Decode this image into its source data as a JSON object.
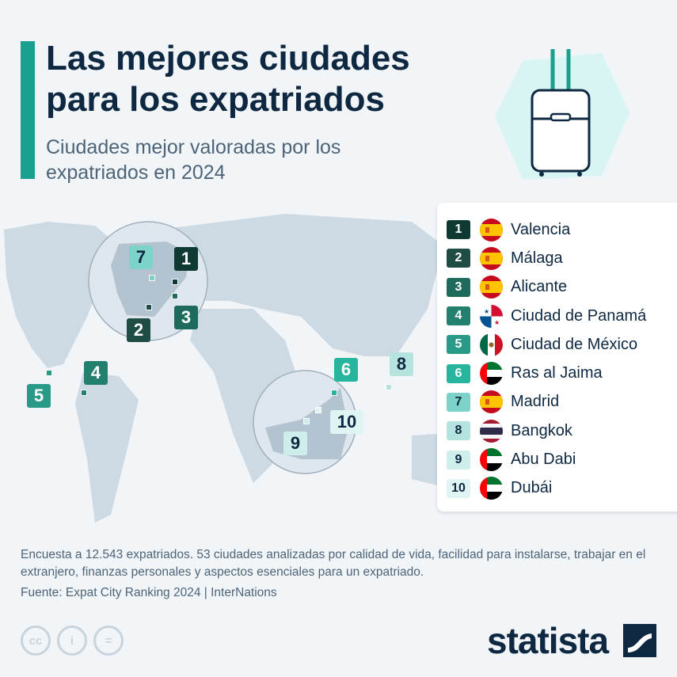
{
  "header": {
    "title": "Las mejores ciudades para los expatriados",
    "subtitle": "Ciudades mejor valoradas por los expatriados en 2024",
    "illustration": "suitcase-icon"
  },
  "ranking": [
    {
      "rank": "1",
      "city": "Valencia",
      "flag": "spain",
      "color": "#0f3a33",
      "text_color": "#ffffff"
    },
    {
      "rank": "2",
      "city": "Málaga",
      "flag": "spain",
      "color": "#1f4d45",
      "text_color": "#ffffff"
    },
    {
      "rank": "3",
      "city": "Alicante",
      "flag": "spain",
      "color": "#1e6b5c",
      "text_color": "#ffffff"
    },
    {
      "rank": "4",
      "city": "Ciudad de Panamá",
      "flag": "panama",
      "color": "#23806f",
      "text_color": "#ffffff"
    },
    {
      "rank": "5",
      "city": "Ciudad de México",
      "flag": "mexico",
      "color": "#2a9a88",
      "text_color": "#ffffff"
    },
    {
      "rank": "6",
      "city": "Ras al Jaima",
      "flag": "uae",
      "color": "#27b5a0",
      "text_color": "#ffffff"
    },
    {
      "rank": "7",
      "city": "Madrid",
      "flag": "spain",
      "color": "#7dd3c8",
      "text_color": "#0e2841"
    },
    {
      "rank": "8",
      "city": "Bangkok",
      "flag": "thailand",
      "color": "#b5e3dd",
      "text_color": "#0e2841"
    },
    {
      "rank": "9",
      "city": "Abu Dabi",
      "flag": "uae",
      "color": "#cdeeea",
      "text_color": "#0e2841"
    },
    {
      "rank": "10",
      "city": "Dubái",
      "flag": "uae",
      "color": "#e0f5f3",
      "text_color": "#0e2841"
    }
  ],
  "footer": {
    "note": "Encuesta a 12.543 expatriados. 53 ciudades analizadas por calidad de vida, facilidad para instalarse, trabajar en el extranjero, finanzas personales y aspectos esenciales para un expatriado.",
    "source": "Fuente: Expat City Ranking 2024 | InterNations",
    "license_icons": [
      "cc",
      "by",
      "nd"
    ],
    "cc_labels": [
      "cc",
      "i",
      "="
    ],
    "brand": "statista"
  }
}
